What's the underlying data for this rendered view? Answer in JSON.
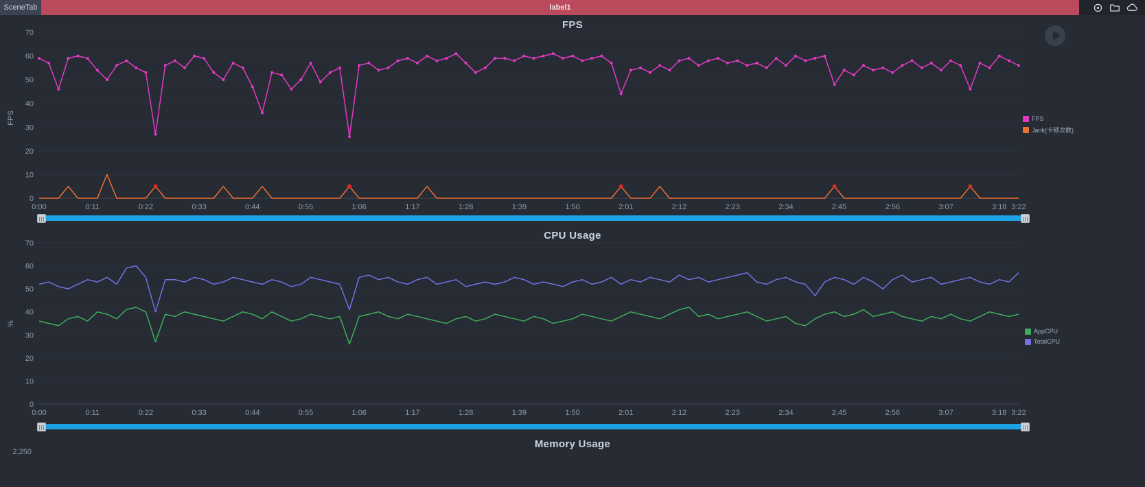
{
  "topbar": {
    "scene_tab": "SceneTab",
    "label": "label1",
    "icons": [
      {
        "name": "location-icon"
      },
      {
        "name": "folder-icon"
      },
      {
        "name": "cloud-icon"
      }
    ]
  },
  "colors": {
    "background": "#262b34",
    "topbar_bg": "#20242b",
    "label_bar_red": "#bb4a5c",
    "datazoom_track_blue": "#1da2e5",
    "fps_line": "#e23bc3",
    "jank_line": "#f07032",
    "jank_alert": "#d93025",
    "app_cpu_line": "#3fae5a",
    "total_cpu_line": "#7272e0"
  },
  "chart_data": [
    {
      "type": "line",
      "title": "FPS",
      "ylabel": "FPS",
      "ylim": [
        0,
        70
      ],
      "ytick_step": 10,
      "x_step_seconds": 2,
      "x_total_seconds": 202,
      "xtick_seconds": [
        0,
        11,
        22,
        33,
        44,
        55,
        66,
        77,
        88,
        99,
        110,
        121,
        132,
        143,
        154,
        165,
        176,
        187,
        198,
        202
      ],
      "xtick_labels": [
        "0:00",
        "0:11",
        "0:22",
        "0:33",
        "0:44",
        "0:55",
        "1:06",
        "1:17",
        "1:28",
        "1:39",
        "1:50",
        "2:01",
        "2:12",
        "2:23",
        "2:34",
        "2:45",
        "2:56",
        "3:07",
        "3:18",
        "3:22"
      ],
      "legend_position": "right",
      "grid": true,
      "series": [
        {
          "name": "FPS",
          "color": "#e23bc3",
          "marker": "circle",
          "values": [
            59,
            57,
            46,
            59,
            60,
            59,
            54,
            50,
            56,
            58,
            55,
            53,
            27,
            56,
            58,
            55,
            60,
            59,
            53,
            50,
            57,
            55,
            47,
            36,
            53,
            52,
            46,
            50,
            57,
            49,
            53,
            55,
            26,
            56,
            57,
            54,
            55,
            58,
            59,
            57,
            60,
            58,
            59,
            61,
            57,
            53,
            55,
            59,
            59,
            58,
            60,
            59,
            60,
            61,
            59,
            60,
            58,
            59,
            60,
            57,
            44,
            54,
            55,
            53,
            56,
            54,
            58,
            59,
            56,
            58,
            59,
            57,
            58,
            56,
            57,
            55,
            59,
            56,
            60,
            58,
            59,
            60,
            48,
            54,
            52,
            56,
            54,
            55,
            53,
            56,
            58,
            55,
            57,
            54,
            58,
            56,
            46,
            57,
            55,
            60,
            58,
            56
          ]
        },
        {
          "name": "Jank(卡顿次数)",
          "color": "#f07032",
          "marker": "none",
          "alert_color": "#d93025",
          "alert_indices": [
            12,
            32,
            60,
            82,
            96
          ],
          "values": [
            0,
            0,
            0,
            5,
            0,
            0,
            0,
            10,
            0,
            0,
            0,
            0,
            5,
            0,
            0,
            0,
            0,
            0,
            0,
            5,
            0,
            0,
            0,
            5,
            0,
            0,
            0,
            0,
            0,
            0,
            0,
            0,
            5,
            0,
            0,
            0,
            0,
            0,
            0,
            0,
            5,
            0,
            0,
            0,
            0,
            0,
            0,
            0,
            0,
            0,
            0,
            0,
            0,
            0,
            0,
            0,
            0,
            0,
            0,
            0,
            5,
            0,
            0,
            0,
            5,
            0,
            0,
            0,
            0,
            0,
            0,
            0,
            0,
            0,
            0,
            0,
            0,
            0,
            0,
            0,
            0,
            0,
            5,
            0,
            0,
            0,
            0,
            0,
            0,
            0,
            0,
            0,
            0,
            0,
            0,
            0,
            5,
            0,
            0,
            0,
            0,
            0
          ]
        }
      ]
    },
    {
      "type": "line",
      "title": "CPU Usage",
      "ylabel": "%",
      "ylim": [
        0,
        70
      ],
      "ytick_step": 10,
      "x_step_seconds": 2,
      "x_total_seconds": 202,
      "xtick_seconds": [
        0,
        11,
        22,
        33,
        44,
        55,
        66,
        77,
        88,
        99,
        110,
        121,
        132,
        143,
        154,
        165,
        176,
        187,
        198,
        202
      ],
      "xtick_labels": [
        "0:00",
        "0:11",
        "0:22",
        "0:33",
        "0:44",
        "0:55",
        "1:06",
        "1:17",
        "1:28",
        "1:39",
        "1:50",
        "2:01",
        "2:12",
        "2:23",
        "2:34",
        "2:45",
        "2:56",
        "3:07",
        "3:18",
        "3:22"
      ],
      "legend_position": "right",
      "grid": true,
      "series": [
        {
          "name": "AppCPU",
          "color": "#3fae5a",
          "marker": "none",
          "values": [
            36,
            35,
            34,
            37,
            38,
            36,
            40,
            39,
            37,
            41,
            42,
            40,
            27,
            39,
            38,
            40,
            39,
            38,
            37,
            36,
            38,
            40,
            39,
            37,
            40,
            38,
            36,
            37,
            39,
            38,
            37,
            38,
            26,
            38,
            39,
            40,
            38,
            37,
            39,
            38,
            37,
            36,
            35,
            37,
            38,
            36,
            37,
            39,
            38,
            37,
            36,
            38,
            37,
            35,
            36,
            37,
            39,
            38,
            37,
            36,
            38,
            40,
            39,
            38,
            37,
            39,
            41,
            42,
            38,
            39,
            37,
            38,
            39,
            40,
            38,
            36,
            37,
            38,
            35,
            34,
            37,
            39,
            40,
            38,
            39,
            41,
            38,
            39,
            40,
            38,
            37,
            36,
            38,
            37,
            39,
            37,
            36,
            38,
            40,
            39,
            38,
            39
          ]
        },
        {
          "name": "TotalCPU",
          "color": "#7272e0",
          "marker": "none",
          "values": [
            52,
            53,
            51,
            50,
            52,
            54,
            53,
            55,
            52,
            59,
            60,
            55,
            40,
            54,
            54,
            53,
            55,
            54,
            52,
            53,
            55,
            54,
            53,
            52,
            54,
            53,
            51,
            52,
            55,
            54,
            53,
            52,
            41,
            55,
            56,
            54,
            55,
            53,
            52,
            54,
            55,
            52,
            53,
            54,
            51,
            52,
            53,
            52,
            53,
            55,
            54,
            52,
            53,
            52,
            51,
            53,
            54,
            52,
            53,
            55,
            52,
            54,
            53,
            55,
            54,
            53,
            56,
            54,
            55,
            53,
            54,
            55,
            56,
            57,
            53,
            52,
            54,
            55,
            53,
            52,
            47,
            53,
            55,
            54,
            52,
            55,
            53,
            50,
            54,
            56,
            53,
            54,
            55,
            52,
            53,
            54,
            55,
            53,
            52,
            54,
            53,
            57
          ]
        }
      ]
    },
    {
      "type": "line",
      "title": "Memory Usage",
      "first_visible_ytick": "2,250",
      "series": []
    }
  ]
}
